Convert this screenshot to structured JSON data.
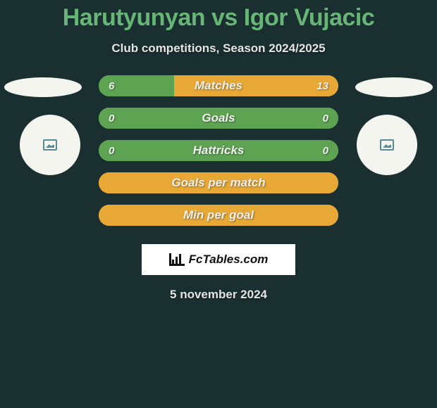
{
  "page": {
    "title": "Harutyunyan vs Igor Vujacic",
    "subtitle": "Club competitions, Season 2024/2025",
    "date": "5 november 2024",
    "logo_text": "FcTables.com"
  },
  "colors": {
    "background": "#1a2f2f",
    "title": "#68b578",
    "bar_green": "#5da352",
    "bar_orange": "#e8a836",
    "flag": "#f5f5f0"
  },
  "stats": [
    {
      "label": "Matches",
      "left_value": "6",
      "right_value": "13",
      "left_pct": 31.6,
      "right_pct": 68.4,
      "left_color": "#5da352",
      "right_color": "#e8a836",
      "show_values": true
    },
    {
      "label": "Goals",
      "left_value": "0",
      "right_value": "0",
      "left_pct": 100,
      "right_pct": 0,
      "left_color": "#5da352",
      "right_color": "#e8a836",
      "show_values": true
    },
    {
      "label": "Hattricks",
      "left_value": "0",
      "right_value": "0",
      "left_pct": 100,
      "right_pct": 0,
      "left_color": "#5da352",
      "right_color": "#e8a836",
      "show_values": true
    },
    {
      "label": "Goals per match",
      "left_value": "",
      "right_value": "",
      "left_pct": 0,
      "right_pct": 100,
      "left_color": "#5da352",
      "right_color": "#e8a836",
      "show_values": false
    },
    {
      "label": "Min per goal",
      "left_value": "",
      "right_value": "",
      "left_pct": 0,
      "right_pct": 100,
      "left_color": "#5da352",
      "right_color": "#e8a836",
      "show_values": false
    }
  ]
}
